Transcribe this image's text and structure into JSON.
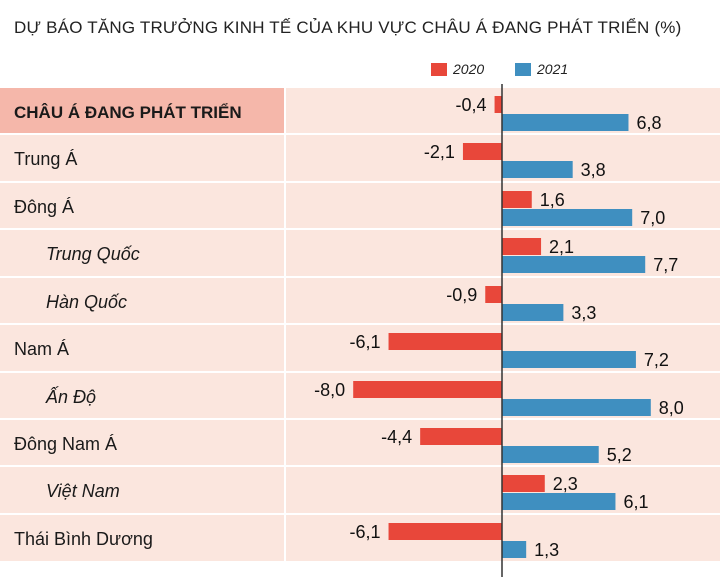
{
  "colors": {
    "series_2020": "#e8473a",
    "series_2021": "#3f8fc0",
    "row_bg": "#fbe6de",
    "row_bg_highlight": "#f5b7aa",
    "separator": "#ffffff",
    "axis": "#333333"
  },
  "chart_data": {
    "type": "bar",
    "orientation": "horizontal",
    "title": "DỰ BÁO TĂNG TRƯỞNG KINH TẾ CỦA KHU VỰC CHÂU Á ĐANG PHÁT TRIỂN (%)",
    "legend_position": "top-right",
    "grid": false,
    "xlim": [
      -8.5,
      8.6
    ],
    "categories": [
      {
        "label": "CHÂU Á ĐANG PHÁT TRIỂN",
        "level": "highlight"
      },
      {
        "label": "Trung Á",
        "level": "region"
      },
      {
        "label": "Đông Á",
        "level": "region"
      },
      {
        "label": "Trung Quốc",
        "level": "country"
      },
      {
        "label": "Hàn Quốc",
        "level": "country"
      },
      {
        "label": "Nam Á",
        "level": "region"
      },
      {
        "label": "Ấn Độ",
        "level": "country"
      },
      {
        "label": "Đông Nam Á",
        "level": "region"
      },
      {
        "label": "Việt Nam",
        "level": "country"
      },
      {
        "label": "Thái Bình Dương",
        "level": "region"
      }
    ],
    "series": [
      {
        "name": "2020",
        "values": [
          -0.4,
          -2.1,
          1.6,
          2.1,
          -0.9,
          -6.1,
          -8.0,
          -4.4,
          2.3,
          -6.1
        ],
        "labels": [
          "-0,4",
          "-2,1",
          "1,6",
          "2,1",
          "-0,9",
          "-6,1",
          "-8,0",
          "-4,4",
          "2,3",
          "-6,1"
        ]
      },
      {
        "name": "2021",
        "values": [
          6.8,
          3.8,
          7.0,
          7.7,
          3.3,
          7.2,
          8.0,
          5.2,
          6.1,
          1.3
        ],
        "labels": [
          "6,8",
          "3,8",
          "7,0",
          "7,7",
          "3,3",
          "7,2",
          "8,0",
          "5,2",
          "6,1",
          "1,3"
        ]
      }
    ]
  }
}
